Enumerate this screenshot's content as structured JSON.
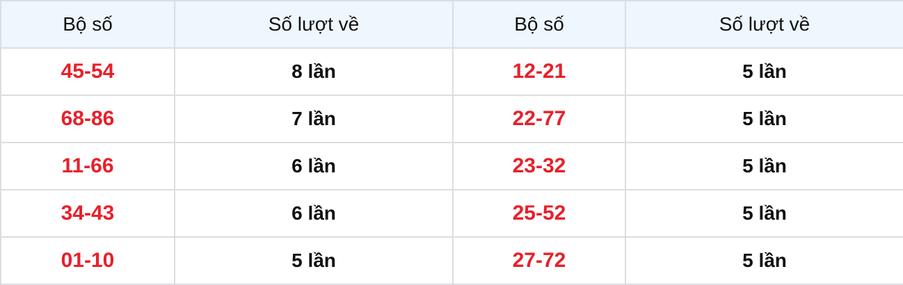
{
  "headers": [
    "Bộ số",
    "Số lượt về",
    "Bộ số",
    "Số lượt về"
  ],
  "accent_color": "#e8202a",
  "rows": [
    {
      "left_pair": "45-54",
      "left_count": "8 lần",
      "right_pair": "12-21",
      "right_count": "5 lần"
    },
    {
      "left_pair": "68-86",
      "left_count": "7 lần",
      "right_pair": "22-77",
      "right_count": "5 lần"
    },
    {
      "left_pair": "11-66",
      "left_count": "6 lần",
      "right_pair": "23-32",
      "right_count": "5 lần"
    },
    {
      "left_pair": "34-43",
      "left_count": "6 lần",
      "right_pair": "25-52",
      "right_count": "5 lần"
    },
    {
      "left_pair": "01-10",
      "left_count": "5 lần",
      "right_pair": "27-72",
      "right_count": "5 lần"
    }
  ]
}
